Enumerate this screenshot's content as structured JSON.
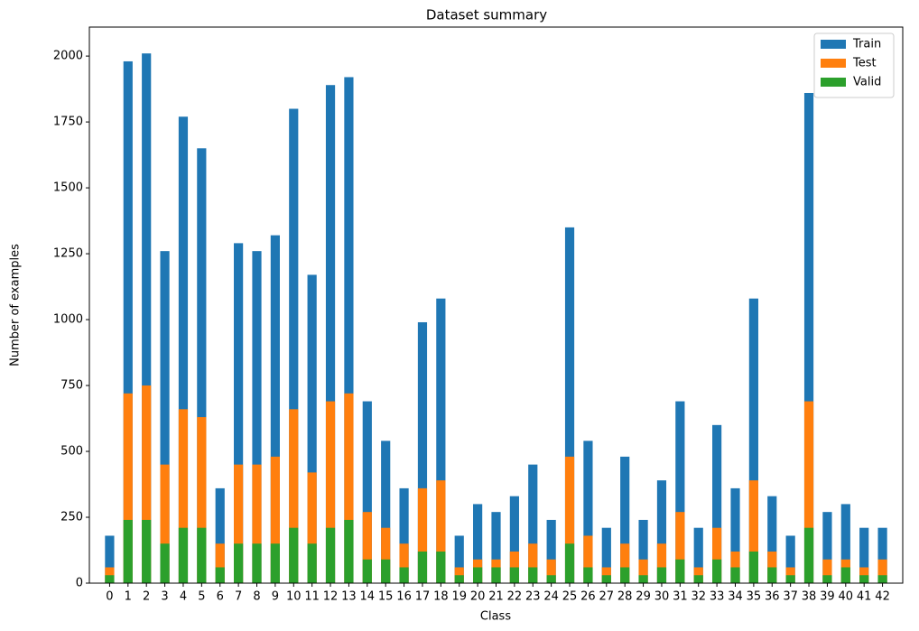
{
  "chart_data": {
    "type": "bar",
    "title": "Dataset summary",
    "xlabel": "Class",
    "ylabel": "Number of examples",
    "categories": [
      "0",
      "1",
      "2",
      "3",
      "4",
      "5",
      "6",
      "7",
      "8",
      "9",
      "10",
      "11",
      "12",
      "13",
      "14",
      "15",
      "16",
      "17",
      "18",
      "19",
      "20",
      "21",
      "22",
      "23",
      "24",
      "25",
      "26",
      "27",
      "28",
      "29",
      "30",
      "31",
      "32",
      "33",
      "34",
      "35",
      "36",
      "37",
      "38",
      "39",
      "40",
      "41",
      "42"
    ],
    "series": [
      {
        "name": "Train",
        "color": "#1f77b4",
        "values": [
          180,
          1980,
          2010,
          1260,
          1770,
          1650,
          360,
          1290,
          1260,
          1320,
          1800,
          1170,
          1890,
          1920,
          690,
          540,
          360,
          990,
          1080,
          180,
          300,
          270,
          330,
          450,
          240,
          1350,
          540,
          210,
          480,
          240,
          390,
          690,
          210,
          600,
          360,
          1080,
          330,
          180,
          1860,
          270,
          300,
          210,
          210
        ]
      },
      {
        "name": "Test",
        "color": "#ff7f0e",
        "values": [
          60,
          720,
          750,
          450,
          660,
          630,
          150,
          450,
          450,
          480,
          660,
          420,
          690,
          720,
          270,
          210,
          150,
          360,
          390,
          60,
          90,
          90,
          120,
          150,
          90,
          480,
          180,
          60,
          150,
          90,
          150,
          270,
          60,
          210,
          120,
          390,
          120,
          60,
          690,
          90,
          90,
          60,
          90
        ]
      },
      {
        "name": "Valid",
        "color": "#2ca02c",
        "values": [
          30,
          240,
          240,
          150,
          210,
          210,
          60,
          150,
          150,
          150,
          210,
          150,
          210,
          240,
          90,
          90,
          60,
          120,
          120,
          30,
          60,
          60,
          60,
          60,
          30,
          150,
          60,
          30,
          60,
          30,
          60,
          90,
          30,
          90,
          60,
          120,
          60,
          30,
          210,
          30,
          60,
          30,
          30
        ]
      }
    ],
    "ylim": [
      0,
      2110
    ],
    "yticks": [
      0,
      250,
      500,
      750,
      1000,
      1250,
      1500,
      1750,
      2000
    ],
    "grid": false,
    "legend": "upper right"
  }
}
